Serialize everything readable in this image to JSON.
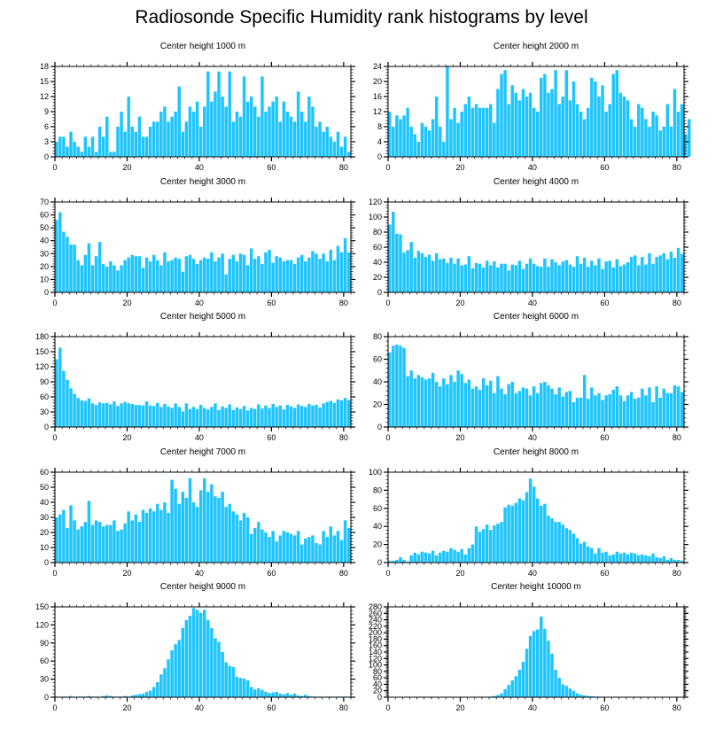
{
  "title": "Radiosonde Specific Humidity rank histograms by level",
  "colors": {
    "bar": "#1ec4ff",
    "bar_edge": "#0a9fd8",
    "axis": "#000000",
    "text": "#000000"
  },
  "chart_data": [
    {
      "type": "bar",
      "title": "Center height 1000 m",
      "xlabel": "",
      "ylabel": "",
      "xlim": [
        0,
        82
      ],
      "xticks": [
        0,
        20,
        40,
        60,
        80
      ],
      "ylim": [
        0,
        18
      ],
      "yticks": [
        0,
        3,
        6,
        9,
        12,
        15,
        18
      ],
      "values": [
        3,
        4,
        4,
        2,
        5,
        3,
        2,
        1,
        4,
        2,
        4,
        1,
        6,
        4,
        8,
        1,
        1,
        6,
        9,
        5,
        12,
        6,
        5,
        8,
        4,
        4,
        6,
        7,
        7,
        9,
        10,
        7,
        8,
        9,
        14,
        5,
        7,
        10,
        9,
        11,
        6,
        10,
        17,
        11,
        13,
        17,
        12,
        10,
        17,
        7,
        9,
        8,
        16,
        11,
        12,
        10,
        8,
        16,
        9,
        10,
        11,
        12,
        7,
        11,
        9,
        8,
        7,
        13,
        9,
        7,
        12,
        10,
        6,
        7,
        5,
        6,
        4,
        3,
        5,
        2,
        4,
        1
      ],
      "color": "#1ec4ff"
    },
    {
      "type": "bar",
      "title": "Center height 2000 m",
      "xlabel": "",
      "ylabel": "",
      "xlim": [
        0,
        82
      ],
      "xticks": [
        0,
        20,
        40,
        60,
        80
      ],
      "ylim": [
        0,
        24
      ],
      "yticks": [
        0,
        4,
        8,
        12,
        16,
        20,
        24
      ],
      "values": [
        12,
        8,
        11,
        10,
        11,
        13,
        8,
        6,
        4,
        9,
        8,
        7,
        10,
        16,
        8,
        4,
        24,
        10,
        13,
        9,
        12,
        14,
        16,
        13,
        14,
        13,
        13,
        13,
        14,
        9,
        18,
        22,
        23,
        14,
        19,
        17,
        15,
        18,
        16,
        17,
        13,
        12,
        21,
        22,
        17,
        18,
        23,
        14,
        16,
        23,
        15,
        20,
        14,
        12,
        10,
        13,
        21,
        20,
        16,
        19,
        12,
        14,
        22,
        23,
        17,
        16,
        15,
        10,
        8,
        14,
        13,
        10,
        8,
        12,
        11,
        7,
        8,
        14,
        8,
        18,
        12,
        14,
        6,
        10
      ],
      "color": "#1ec4ff"
    },
    {
      "type": "bar",
      "title": "Center height 3000 m",
      "xlabel": "",
      "ylabel": "",
      "xlim": [
        0,
        82
      ],
      "xticks": [
        0,
        20,
        40,
        60,
        80
      ],
      "ylim": [
        0,
        70
      ],
      "yticks": [
        0,
        10,
        20,
        30,
        40,
        50,
        60,
        70
      ],
      "values": [
        56,
        62,
        47,
        43,
        37,
        37,
        25,
        21,
        29,
        38,
        21,
        28,
        39,
        22,
        20,
        24,
        21,
        17,
        21,
        25,
        27,
        29,
        28,
        28,
        19,
        27,
        24,
        29,
        25,
        21,
        31,
        24,
        25,
        27,
        26,
        16,
        28,
        29,
        26,
        22,
        25,
        27,
        26,
        31,
        24,
        27,
        30,
        14,
        26,
        29,
        24,
        30,
        29,
        21,
        34,
        26,
        28,
        22,
        31,
        33,
        23,
        28,
        27,
        24,
        25,
        25,
        22,
        27,
        29,
        24,
        27,
        32,
        30,
        26,
        30,
        24,
        33,
        25,
        36,
        31,
        42,
        31
      ],
      "color": "#1ec4ff"
    },
    {
      "type": "bar",
      "title": "Center height 4000 m",
      "xlabel": "",
      "ylabel": "",
      "xlim": [
        0,
        82
      ],
      "xticks": [
        0,
        20,
        40,
        60,
        80
      ],
      "ylim": [
        0,
        120
      ],
      "yticks": [
        0,
        20,
        40,
        60,
        80,
        100,
        120
      ],
      "values": [
        90,
        107,
        78,
        77,
        53,
        56,
        67,
        46,
        55,
        52,
        47,
        50,
        42,
        52,
        44,
        45,
        39,
        46,
        38,
        45,
        36,
        37,
        48,
        32,
        39,
        38,
        33,
        42,
        36,
        41,
        33,
        38,
        38,
        29,
        37,
        36,
        42,
        31,
        38,
        45,
        38,
        35,
        34,
        45,
        34,
        44,
        40,
        36,
        41,
        43,
        37,
        34,
        48,
        38,
        46,
        34,
        42,
        36,
        45,
        31,
        41,
        42,
        33,
        44,
        35,
        37,
        40,
        47,
        49,
        36,
        47,
        37,
        52,
        38,
        47,
        49,
        52,
        44,
        54,
        46,
        59,
        51
      ],
      "color": "#1ec4ff"
    },
    {
      "type": "bar",
      "title": "Center height 5000 m",
      "xlabel": "",
      "ylabel": "",
      "xlim": [
        0,
        82
      ],
      "xticks": [
        0,
        20,
        40,
        60,
        80
      ],
      "ylim": [
        0,
        180
      ],
      "yticks": [
        0,
        30,
        60,
        90,
        120,
        150,
        180
      ],
      "values": [
        135,
        158,
        112,
        94,
        77,
        66,
        58,
        53,
        52,
        57,
        47,
        44,
        49,
        47,
        48,
        45,
        51,
        42,
        47,
        50,
        47,
        46,
        44,
        44,
        43,
        51,
        43,
        42,
        48,
        40,
        46,
        41,
        38,
        47,
        40,
        31,
        47,
        36,
        40,
        36,
        44,
        38,
        35,
        40,
        47,
        34,
        41,
        38,
        45,
        34,
        39,
        36,
        42,
        33,
        38,
        36,
        45,
        37,
        43,
        38,
        46,
        40,
        43,
        35,
        44,
        41,
        38,
        45,
        42,
        40,
        46,
        43,
        44,
        39,
        47,
        50,
        52,
        48,
        55,
        53,
        58,
        54
      ],
      "color": "#1ec4ff"
    },
    {
      "type": "bar",
      "title": "Center height 6000 m",
      "xlabel": "",
      "ylabel": "",
      "xlim": [
        0,
        82
      ],
      "xticks": [
        0,
        20,
        40,
        60,
        80
      ],
      "ylim": [
        0,
        80
      ],
      "yticks": [
        0,
        20,
        40,
        60,
        80
      ],
      "values": [
        66,
        72,
        73,
        72,
        70,
        45,
        50,
        43,
        46,
        44,
        42,
        43,
        48,
        40,
        36,
        43,
        38,
        46,
        40,
        50,
        47,
        39,
        42,
        34,
        36,
        33,
        43,
        37,
        41,
        30,
        45,
        34,
        29,
        38,
        40,
        30,
        32,
        35,
        34,
        28,
        36,
        30,
        39,
        40,
        37,
        34,
        29,
        35,
        27,
        31,
        32,
        22,
        26,
        26,
        46,
        25,
        35,
        28,
        30,
        24,
        28,
        29,
        33,
        36,
        28,
        23,
        28,
        31,
        25,
        26,
        34,
        28,
        35,
        22,
        36,
        26,
        34,
        30,
        30,
        37,
        36,
        31
      ],
      "color": "#1ec4ff"
    },
    {
      "type": "bar",
      "title": "Center height 7000 m",
      "xlabel": "",
      "ylabel": "",
      "xlim": [
        0,
        82
      ],
      "xticks": [
        0,
        20,
        40,
        60,
        80
      ],
      "ylim": [
        0,
        60
      ],
      "yticks": [
        0,
        10,
        20,
        30,
        40,
        50,
        60
      ],
      "values": [
        30,
        32,
        35,
        23,
        38,
        28,
        22,
        24,
        27,
        41,
        25,
        28,
        27,
        24,
        25,
        25,
        28,
        21,
        22,
        26,
        34,
        28,
        32,
        27,
        35,
        33,
        36,
        34,
        39,
        35,
        40,
        33,
        55,
        49,
        39,
        47,
        43,
        56,
        40,
        37,
        48,
        56,
        47,
        52,
        44,
        43,
        47,
        37,
        39,
        34,
        32,
        28,
        33,
        30,
        19,
        23,
        27,
        22,
        20,
        17,
        21,
        14,
        18,
        21,
        20,
        19,
        18,
        21,
        12,
        16,
        17,
        18,
        13,
        12,
        21,
        17,
        24,
        18,
        21,
        15,
        28,
        23
      ],
      "color": "#1ec4ff"
    },
    {
      "type": "bar",
      "title": "Center height 8000 m",
      "xlabel": "",
      "ylabel": "",
      "xlim": [
        0,
        82
      ],
      "xticks": [
        0,
        20,
        40,
        60,
        80
      ],
      "ylim": [
        0,
        100
      ],
      "yticks": [
        0,
        20,
        40,
        60,
        80,
        100
      ],
      "values": [
        2,
        2,
        3,
        6,
        3,
        1,
        8,
        11,
        9,
        12,
        11,
        10,
        13,
        8,
        11,
        13,
        12,
        16,
        14,
        12,
        15,
        9,
        16,
        20,
        40,
        34,
        37,
        42,
        36,
        41,
        43,
        45,
        61,
        64,
        63,
        66,
        71,
        69,
        78,
        93,
        84,
        71,
        63,
        65,
        52,
        49,
        45,
        45,
        42,
        38,
        36,
        32,
        27,
        21,
        23,
        18,
        16,
        10,
        16,
        11,
        12,
        8,
        9,
        12,
        10,
        11,
        9,
        11,
        10,
        8,
        9,
        8,
        7,
        10,
        6,
        5,
        7,
        3,
        5,
        3,
        3,
        2
      ],
      "color": "#1ec4ff"
    },
    {
      "type": "bar",
      "title": "Center height 9000 m",
      "xlabel": "",
      "ylabel": "",
      "xlim": [
        0,
        82
      ],
      "xticks": [
        0,
        20,
        40,
        60,
        80
      ],
      "ylim": [
        0,
        150
      ],
      "yticks": [
        0,
        30,
        60,
        90,
        120,
        150
      ],
      "values": [
        1,
        0,
        1,
        1,
        2,
        0,
        1,
        1,
        1,
        2,
        1,
        1,
        0,
        2,
        3,
        2,
        1,
        1,
        1,
        2,
        1,
        3,
        4,
        5,
        6,
        9,
        11,
        17,
        25,
        38,
        48,
        63,
        78,
        88,
        95,
        115,
        128,
        135,
        148,
        145,
        140,
        145,
        128,
        115,
        98,
        92,
        75,
        58,
        52,
        50,
        34,
        32,
        31,
        28,
        17,
        13,
        15,
        12,
        9,
        7,
        8,
        9,
        6,
        5,
        7,
        4,
        6,
        3,
        2,
        4,
        2,
        1,
        1,
        1,
        0,
        1,
        1,
        0,
        1,
        1,
        1,
        1
      ],
      "color": "#1ec4ff"
    },
    {
      "type": "bar",
      "title": "Center height 10000 m",
      "xlabel": "",
      "ylabel": "",
      "xlim": [
        0,
        82
      ],
      "xticks": [
        0,
        20,
        40,
        60,
        80
      ],
      "ylim": [
        0,
        280
      ],
      "yticks": [
        0,
        20,
        40,
        60,
        80,
        100,
        120,
        140,
        160,
        180,
        200,
        220,
        240,
        260,
        280
      ],
      "values": [
        0,
        0,
        0,
        0,
        0,
        0,
        0,
        0,
        0,
        0,
        0,
        0,
        0,
        0,
        0,
        0,
        0,
        0,
        0,
        0,
        0,
        0,
        0,
        0,
        1,
        1,
        1,
        1,
        2,
        4,
        7,
        12,
        25,
        38,
        52,
        65,
        85,
        110,
        150,
        190,
        205,
        210,
        250,
        212,
        175,
        135,
        85,
        60,
        40,
        35,
        27,
        20,
        12,
        8,
        6,
        4,
        3,
        2,
        2,
        1,
        1,
        1,
        1,
        0,
        1,
        0,
        0,
        0,
        0,
        0,
        0,
        0,
        0,
        0,
        0,
        0,
        0,
        0,
        0,
        0,
        0,
        0
      ],
      "color": "#1ec4ff"
    }
  ]
}
